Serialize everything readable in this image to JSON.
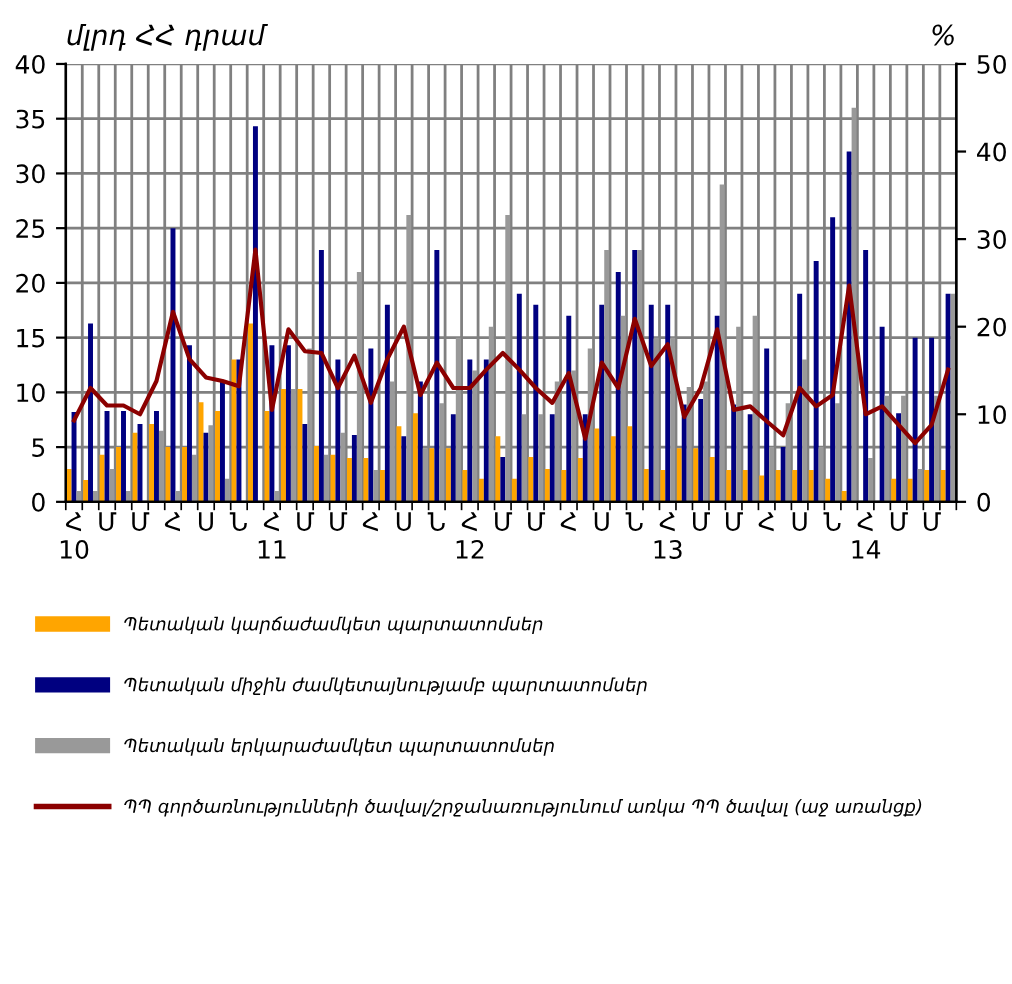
{
  "chart_data": {
    "type": "bar",
    "ylabel": "մլրդ ՀՀ դրամ",
    "y2label": "%",
    "categories": [
      "Հ\n10",
      null,
      "Մ",
      null,
      "Մ",
      null,
      "Հ",
      null,
      "Ս",
      null,
      "Ն",
      null,
      "Հ\n11",
      null,
      "Մ",
      null,
      "Մ",
      null,
      "Հ",
      null,
      "Ս",
      null,
      "Ն",
      null,
      "Հ\n12",
      null,
      "Մ",
      null,
      "Մ",
      null,
      "Հ",
      null,
      "Ս",
      null,
      "Ն",
      null,
      "Հ\n13",
      null,
      "Մ",
      null,
      "Մ",
      null,
      "Հ",
      null,
      "Ս",
      null,
      "Ն",
      null,
      "Հ\n14",
      null,
      "Մ",
      null,
      "Մ",
      null
    ],
    "series": [
      {
        "name": "Պետական կարճաժամկետ պարտատոմսեր",
        "color": "#ffa500",
        "values": [
          3,
          2,
          4.3,
          5,
          6.3,
          7.1,
          5,
          5,
          9.1,
          8.3,
          13,
          16.3,
          8.3,
          10.3,
          10.3,
          5.1,
          4.3,
          4,
          4,
          2.9,
          6.9,
          8.1,
          4.9,
          4.9,
          2.9,
          2.1,
          6,
          2.1,
          4.1,
          3,
          2.9,
          4,
          6.7,
          6,
          6.9,
          3,
          2.9,
          4.9,
          4.9,
          4.1,
          2.9,
          2.9,
          2.4,
          2.9,
          2.9,
          2.9,
          2.1,
          1,
          0,
          0,
          2.1,
          2.1,
          2.9,
          2.9
        ]
      },
      {
        "name": "Պետական միջին ժամկետայնությամբ պարտատոմսեր",
        "color": "#000080",
        "values": [
          8.2,
          16.3,
          8.3,
          8.3,
          7.1,
          8.3,
          25,
          14.3,
          6.3,
          11,
          13,
          34.3,
          14.3,
          14.3,
          7.1,
          23,
          13,
          6.1,
          14,
          18,
          6,
          11,
          23,
          8,
          13,
          13,
          4.1,
          19,
          18,
          8,
          17,
          8,
          18,
          21,
          23,
          18,
          18,
          8.9,
          9.4,
          17,
          8.9,
          8,
          14,
          5,
          19,
          22,
          26,
          32,
          23,
          16,
          8.1,
          15,
          15,
          19
        ]
      },
      {
        "name": "Պետական երկարաժամկետ պարտատոմսեր",
        "color": "#999999",
        "values": [
          1,
          1,
          3,
          1,
          0,
          6.5,
          1,
          4.3,
          7,
          2.1,
          0,
          0,
          1,
          10.3,
          14,
          4.3,
          6.3,
          21,
          2.9,
          11,
          26.2,
          4.9,
          9,
          15,
          12,
          16,
          26.2,
          8,
          8,
          11,
          12,
          14,
          23,
          17,
          23,
          15,
          15,
          10.5,
          11,
          29,
          16,
          17,
          5,
          9,
          13,
          5,
          9,
          36,
          4,
          9.7,
          9.7,
          3,
          9.7,
          19
        ]
      },
      {
        "name": "ՊՊ գործառնությունների ծավալ/շրջանառությունում առկա ՊՊ ծավալ (աջ առանցք)",
        "color": "#8b0000",
        "type": "line",
        "axis": "y2",
        "values": [
          9.3,
          13,
          11,
          11,
          10,
          13.8,
          21.7,
          16.3,
          14.2,
          13.8,
          13.2,
          28.8,
          10.5,
          19.7,
          17.2,
          17,
          13,
          16.7,
          11.3,
          16.3,
          20,
          12.2,
          15.9,
          13,
          13,
          15.1,
          17,
          15.1,
          13,
          11.3,
          14.7,
          7.2,
          15.9,
          13,
          20.9,
          15.5,
          18,
          9.7,
          13,
          19.7,
          10.5,
          10.9,
          9.2,
          7.6,
          13,
          10.9,
          12.2,
          24.7,
          10,
          10.9,
          8.8,
          6.7,
          8.8,
          15.1
        ]
      }
    ],
    "ylim": [
      0,
      40
    ],
    "yticks": [
      0,
      5,
      10,
      15,
      20,
      25,
      30,
      35,
      40
    ],
    "y2lim": [
      0,
      50
    ],
    "y2ticks": [
      0,
      10,
      20,
      30,
      40,
      50
    ],
    "grid": true,
    "legend": "bottom"
  }
}
